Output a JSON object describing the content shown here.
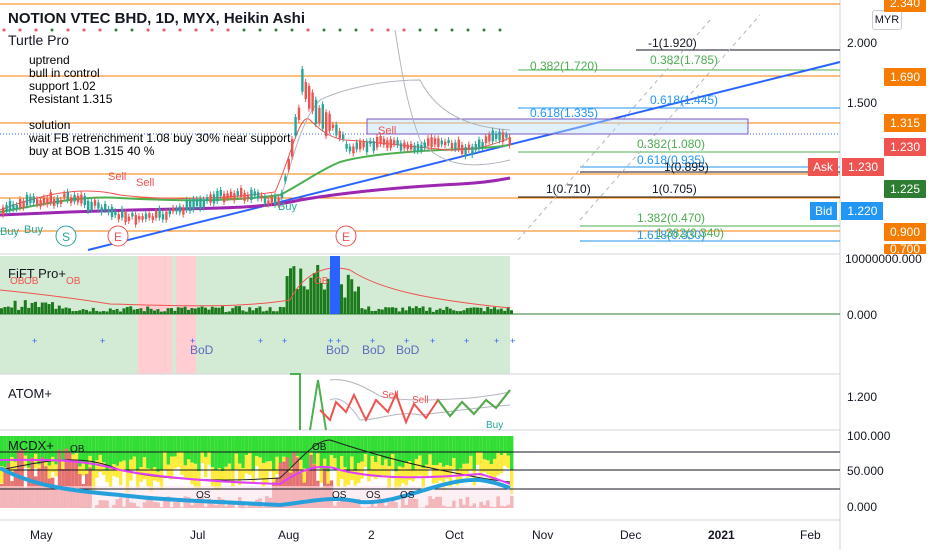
{
  "header": {
    "symbol_line": "NOTION VTEC BHD, 1D, MYX, Heikin Ashi",
    "indicator_name": "Turtle Pro",
    "currency": "MYR"
  },
  "notes": {
    "lines": [
      "uptrend",
      "bull in control",
      "support 1.02",
      "Resistant 1.315",
      "",
      "solution",
      "wait FB retrenchment 1.08 buy 30% near support",
      "buy at BOB 1.315 40 %"
    ]
  },
  "price_axis": {
    "ticks": [
      "2.340",
      "2.000",
      "1.690",
      "1.500",
      "1.315",
      "1.230",
      "1.230",
      "1.225",
      "1.220",
      "0.900",
      "0.700"
    ]
  },
  "price_tags": {
    "p1690": {
      "value": "1.690",
      "color": "#f57c00"
    },
    "p1315": {
      "value": "1.315",
      "color": "#f57c00"
    },
    "p1230": {
      "value": "1.230",
      "color": "#ef5350"
    },
    "ask_label": "Ask",
    "ask_value": "1.230",
    "p1225": {
      "value": "1.225",
      "color": "#2e7d32"
    },
    "bid_label": "Bid",
    "bid_value": "1.220",
    "p0900": {
      "value": "0.900",
      "color": "#f57c00"
    },
    "p0700": {
      "value": "0.700",
      "color": "#f57c00"
    },
    "p2340": {
      "value": "2.340",
      "color": "#f57c00"
    }
  },
  "fib": {
    "f1": "-1(1.920)",
    "f2": "0.382(1.785)",
    "f3": "0.382(1.720)",
    "f4": "0.618(1.445)",
    "f5": "0.618(1.335)",
    "f6": "0.382(1.080)",
    "f7": "0.618(0.935)",
    "f8": "1(0.895)",
    "f9": "1(0.710)",
    "f10": "1(0.705)",
    "f11": "1.382(0.470)",
    "f12": "1.618(0.330)",
    "f13": "1.382(0.340)"
  },
  "chart_marks": {
    "sell": "Sell",
    "buy": "Buy",
    "s": "S",
    "e": "E",
    "bod": "BoD",
    "os": "OS",
    "ob": "OB"
  },
  "panes": {
    "fift": {
      "name": "FiFT Pro+",
      "top_value": "10000000.000",
      "zero": "0.000"
    },
    "atom": {
      "name": "ATOM+",
      "value": "1.200"
    },
    "mcdx": {
      "name": "MCDX+",
      "v100": "100.000",
      "v50": "50.000",
      "v0": "0.000"
    }
  },
  "time_axis": [
    "May",
    "Jul",
    "Aug",
    "2",
    "Oct",
    "Nov",
    "Dec",
    "2021",
    "Feb"
  ],
  "colors": {
    "orange": "#f57c00",
    "green": "#4caf50",
    "blue": "#2962ff",
    "red": "#ef5350",
    "purple": "#7b1fa2"
  }
}
